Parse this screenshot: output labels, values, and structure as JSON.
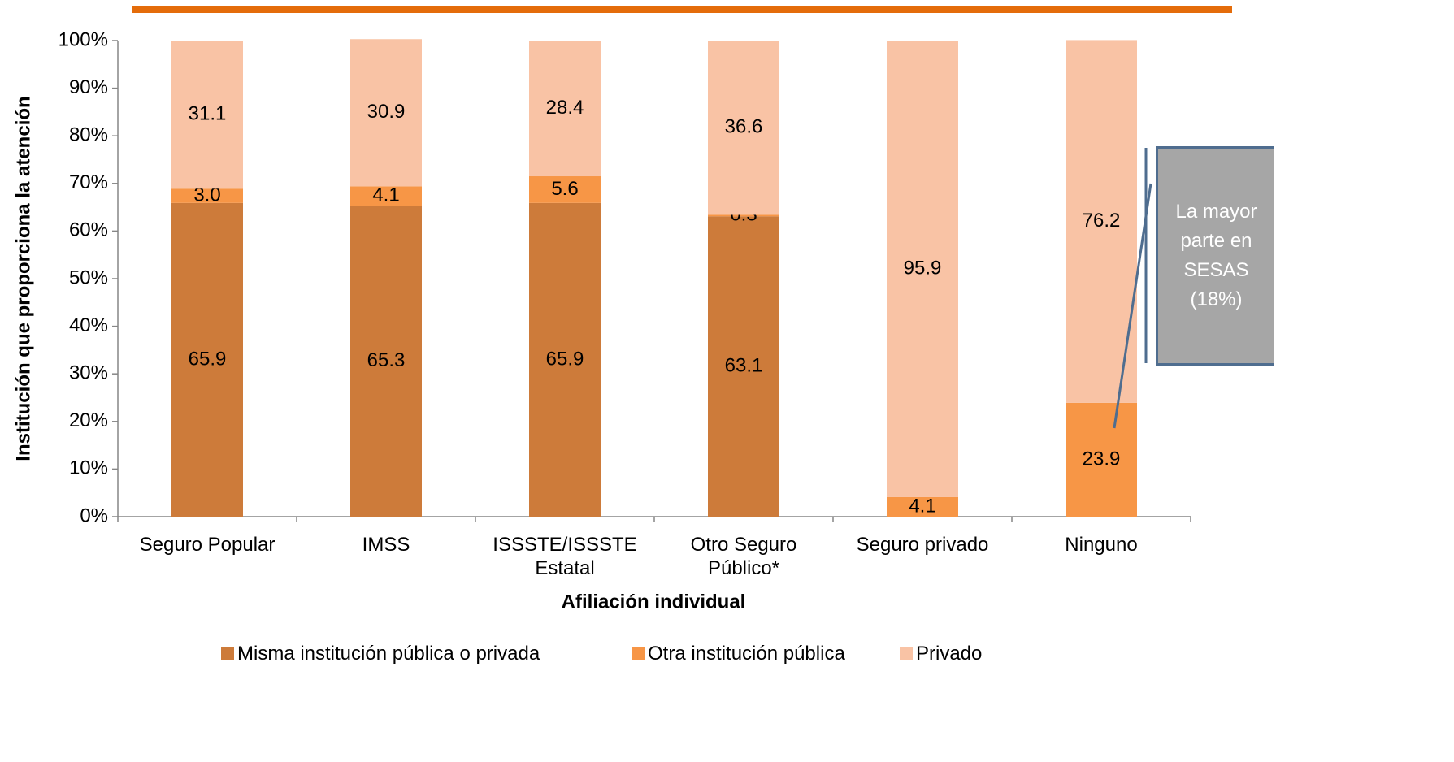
{
  "chart_data": {
    "type": "stacked_bar",
    "y_axis_label": "Institución que proporciona la atención",
    "x_axis_label": "Afiliación individual",
    "categories": [
      "Seguro Popular",
      "IMSS",
      "ISSSTE/ISSSTE Estatal",
      "Otro Seguro Público*",
      "Seguro privado",
      "Ninguno"
    ],
    "series": [
      {
        "name": "Misma institución pública o privada",
        "color": "#cd7b3a",
        "values": [
          65.9,
          65.3,
          65.9,
          63.1,
          null,
          null
        ]
      },
      {
        "name": "Otra institución pública",
        "color": "#f79646",
        "values": [
          3.0,
          4.1,
          5.6,
          0.3,
          4.1,
          23.9
        ],
        "value_labels": [
          "3.0",
          "4.1",
          "5.6",
          "0.3",
          "4.1",
          "23.9"
        ]
      },
      {
        "name": "Privado",
        "color": "#f9c3a5",
        "values": [
          31.1,
          30.9,
          28.4,
          36.6,
          95.9,
          76.2
        ]
      }
    ],
    "ylim": [
      0,
      100
    ],
    "yticks": [
      {
        "value": 0,
        "label": "0%"
      },
      {
        "value": 10,
        "label": "10%"
      },
      {
        "value": 20,
        "label": "20%"
      },
      {
        "value": 30,
        "label": "30%"
      },
      {
        "value": 40,
        "label": "40%"
      },
      {
        "value": 50,
        "label": "50%"
      },
      {
        "value": 60,
        "label": "60%"
      },
      {
        "value": 70,
        "label": "70%"
      },
      {
        "value": 80,
        "label": "80%"
      },
      {
        "value": 90,
        "label": "90%"
      },
      {
        "value": 100,
        "label": "100%"
      }
    ],
    "grid": false,
    "legend": "bottom",
    "annotation": "La mayor parte en SESAS (18%)"
  }
}
